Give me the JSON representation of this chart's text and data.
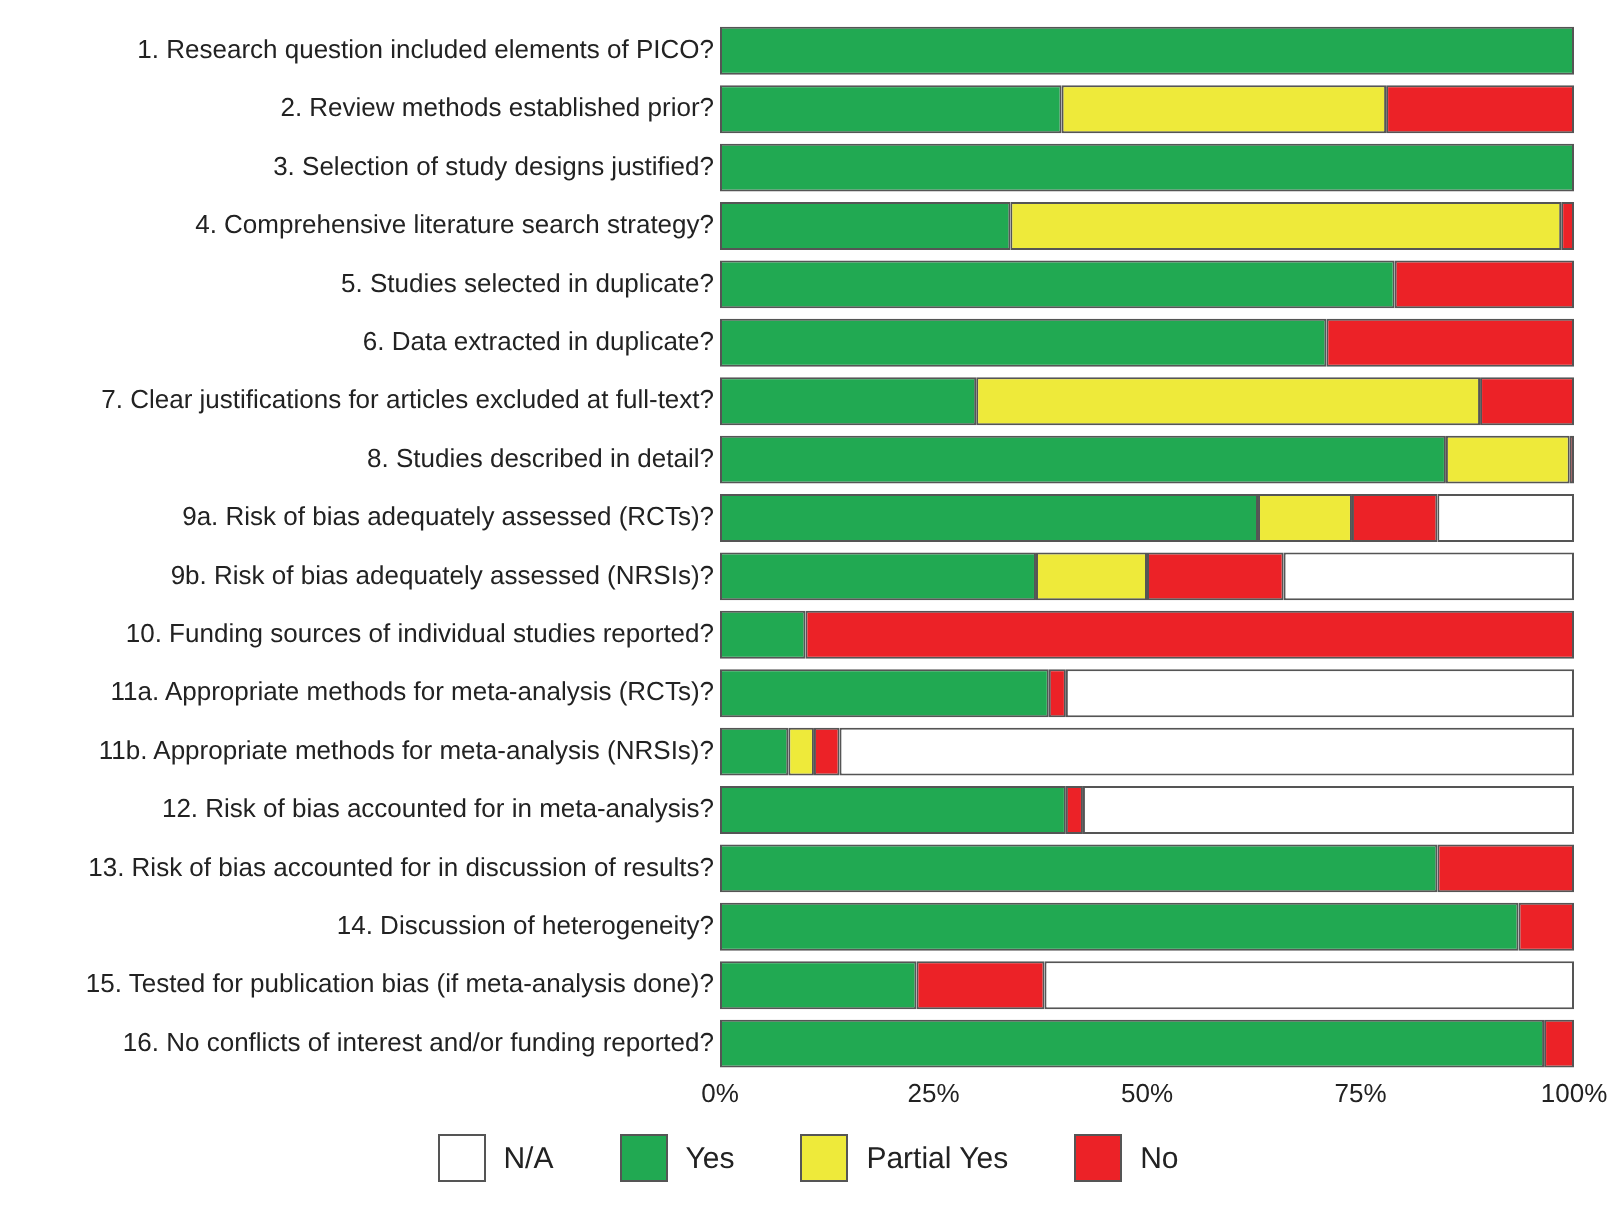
{
  "chart_data": {
    "type": "bar",
    "orientation": "horizontal",
    "stacked": true,
    "categories": [
      "1. Research question included elements of PICO?",
      "2. Review methods established prior?",
      "3. Selection of study designs justified?",
      "4. Comprehensive literature search strategy?",
      "5. Studies selected in duplicate?",
      "6. Data extracted in duplicate?",
      "7. Clear justifications for articles excluded at full-text?",
      "8. Studies described in detail?",
      "9a. Risk of bias adequately assessed (RCTs)?",
      "9b. Risk of bias adequately assessed (NRSIs)?",
      "10. Funding sources of individual studies reported?",
      "11a. Appropriate methods for meta-analysis (RCTs)?",
      "11b. Appropriate methods for meta-analysis (NRSIs)?",
      "12. Risk of bias accounted for in meta-analysis?",
      "13. Risk of bias accounted for in discussion of results?",
      "14. Discussion of heterogeneity?",
      "15. Tested for publication bias (if meta-analysis done)?",
      "16. No conflicts of interest and/or funding reported?"
    ],
    "series": [
      {
        "name": "Yes",
        "color": "#21a952",
        "values": [
          100,
          40,
          100,
          34,
          79,
          71,
          30,
          85,
          63,
          37,
          10,
          38.5,
          8,
          40.5,
          84,
          93.5,
          23,
          96.5
        ]
      },
      {
        "name": "Partial Yes",
        "color": "#eeea3a",
        "values": [
          0,
          38,
          0,
          64.5,
          0,
          0,
          59,
          14.5,
          11,
          13,
          0,
          0,
          3,
          0,
          0,
          0,
          0,
          0
        ]
      },
      {
        "name": "No",
        "color": "#ec2227",
        "values": [
          0,
          22,
          0,
          1.5,
          21,
          29,
          11,
          0.5,
          10,
          16,
          90,
          2,
          3,
          2,
          16,
          6.5,
          15,
          3.5
        ]
      },
      {
        "name": "N/A",
        "color": "#ffffff",
        "values": [
          0,
          0,
          0,
          0,
          0,
          0,
          0,
          0,
          16,
          34,
          0,
          59.5,
          86,
          57.5,
          0,
          0,
          62,
          0
        ]
      }
    ],
    "xlim": [
      0,
      100
    ],
    "xticks": [
      {
        "value": 0,
        "label": "0%"
      },
      {
        "value": 25,
        "label": "25%"
      },
      {
        "value": 50,
        "label": "50%"
      },
      {
        "value": 75,
        "label": "75%"
      },
      {
        "value": 100,
        "label": "100%"
      }
    ],
    "grid": false,
    "legend": "bottom"
  }
}
